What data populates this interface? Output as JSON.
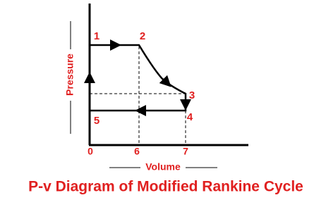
{
  "diagram": {
    "title": "P-v Diagram of Modified Rankine Cycle",
    "x_axis_label": "Volume",
    "y_axis_label": "Pressure",
    "x_tick_labels": [
      "0",
      "6",
      "7"
    ],
    "points": [
      {
        "label": "1"
      },
      {
        "label": "2"
      },
      {
        "label": "3"
      },
      {
        "label": "4"
      },
      {
        "label": "5"
      }
    ]
  }
}
